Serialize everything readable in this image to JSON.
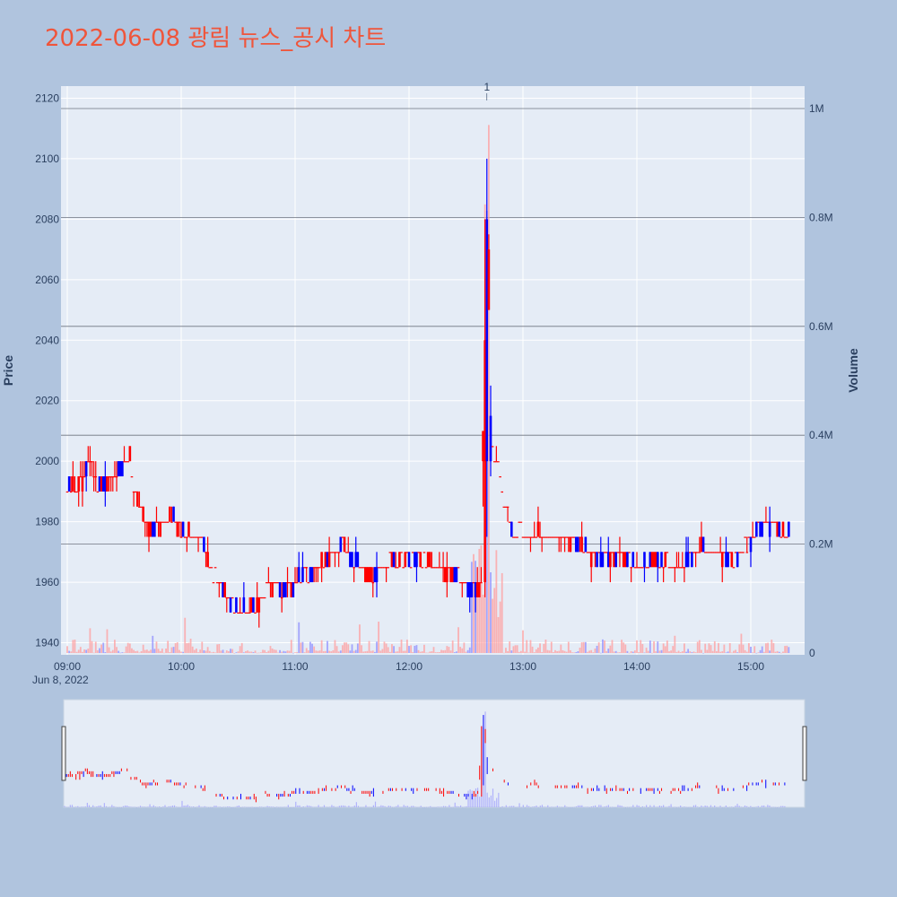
{
  "title": "2022-06-08 광림 뉴스_공시 차트",
  "colors": {
    "background": "#b0c4de",
    "plot_bg": "#e5ecf6",
    "increasing": "#ff0000",
    "decreasing": "#0000ff",
    "volume": "#8c8cff",
    "title": "#ef553b",
    "text": "#2a3f5f"
  },
  "chart_data": {
    "type": "candlestick",
    "title": "2022-06-08 광림 뉴스_공시 차트",
    "xlabel": "",
    "x_date_label": "Jun 8, 2022",
    "ylabel": "Price",
    "y2label": "Volume",
    "ylim": [
      1936,
      2124
    ],
    "y2lim": [
      0,
      1050000
    ],
    "xlim": [
      "09:00",
      "15:30"
    ],
    "y_ticks": [
      "1940",
      "1960",
      "1980",
      "2000",
      "2020",
      "2040",
      "2060",
      "2080",
      "2100",
      "2120"
    ],
    "y2_ticks": [
      "0",
      "0.2M",
      "0.4M",
      "0.6M",
      "0.8M",
      "1M"
    ],
    "x_ticks": [
      "09:00",
      "10:00",
      "11:00",
      "12:00",
      "13:00",
      "14:00",
      "15:00"
    ],
    "annotation": "1",
    "annotation_time": "12:41",
    "range_slider": true,
    "grid": true,
    "price_path": [
      [
        "09:00",
        1990
      ],
      [
        "09:05",
        1992
      ],
      [
        "09:10",
        1996
      ],
      [
        "09:12",
        2003
      ],
      [
        "09:15",
        1994
      ],
      [
        "09:20",
        1993
      ],
      [
        "09:25",
        1994
      ],
      [
        "09:30",
        1999
      ],
      [
        "09:33",
        2000
      ],
      [
        "09:35",
        1990
      ],
      [
        "09:40",
        1982
      ],
      [
        "09:45",
        1978
      ],
      [
        "09:50",
        1980
      ],
      [
        "09:55",
        1982
      ],
      [
        "10:00",
        1978
      ],
      [
        "10:05",
        1976
      ],
      [
        "10:10",
        1975
      ],
      [
        "10:15",
        1966
      ],
      [
        "10:20",
        1960
      ],
      [
        "10:25",
        1955
      ],
      [
        "10:30",
        1950
      ],
      [
        "10:40",
        1952
      ],
      [
        "10:45",
        1958
      ],
      [
        "10:50",
        1958
      ],
      [
        "10:55",
        1958
      ],
      [
        "11:00",
        1960
      ],
      [
        "11:05",
        1962
      ],
      [
        "11:10",
        1964
      ],
      [
        "11:15",
        1967
      ],
      [
        "11:20",
        1970
      ],
      [
        "11:25",
        1972
      ],
      [
        "11:30",
        1968
      ],
      [
        "11:35",
        1965
      ],
      [
        "11:40",
        1963
      ],
      [
        "11:45",
        1965
      ],
      [
        "11:50",
        1967
      ],
      [
        "11:55",
        1968
      ],
      [
        "12:00",
        1968
      ],
      [
        "12:05",
        1968
      ],
      [
        "12:10",
        1966
      ],
      [
        "12:15",
        1965
      ],
      [
        "12:20",
        1964
      ],
      [
        "12:25",
        1962
      ],
      [
        "12:30",
        1960
      ],
      [
        "12:35",
        1957
      ],
      [
        "12:38",
        1960
      ],
      [
        "12:40",
        2040
      ],
      [
        "12:41",
        2100
      ],
      [
        "12:43",
        2010
      ],
      [
        "12:45",
        2000
      ],
      [
        "12:48",
        1995
      ],
      [
        "12:50",
        1985
      ],
      [
        "12:52",
        1982
      ],
      [
        "12:55",
        1978
      ],
      [
        "13:00",
        1976
      ],
      [
        "13:05",
        1976
      ],
      [
        "13:10",
        1975
      ],
      [
        "13:15",
        1976
      ],
      [
        "13:20",
        1975
      ],
      [
        "13:25",
        1974
      ],
      [
        "13:30",
        1972
      ],
      [
        "13:35",
        1970
      ],
      [
        "13:40",
        1968
      ],
      [
        "13:45",
        1968
      ],
      [
        "13:50",
        1969
      ],
      [
        "13:55",
        1968
      ],
      [
        "14:00",
        1966
      ],
      [
        "14:05",
        1966
      ],
      [
        "14:10",
        1967
      ],
      [
        "14:15",
        1966
      ],
      [
        "14:20",
        1965
      ],
      [
        "14:25",
        1966
      ],
      [
        "14:30",
        1970
      ],
      [
        "14:35",
        1972
      ],
      [
        "14:40",
        1970
      ],
      [
        "14:45",
        1968
      ],
      [
        "14:50",
        1969
      ],
      [
        "14:55",
        1970
      ],
      [
        "15:00",
        1974
      ],
      [
        "15:05",
        1978
      ],
      [
        "15:10",
        1979
      ],
      [
        "15:15",
        1977
      ],
      [
        "15:20",
        1976
      ]
    ]
  }
}
